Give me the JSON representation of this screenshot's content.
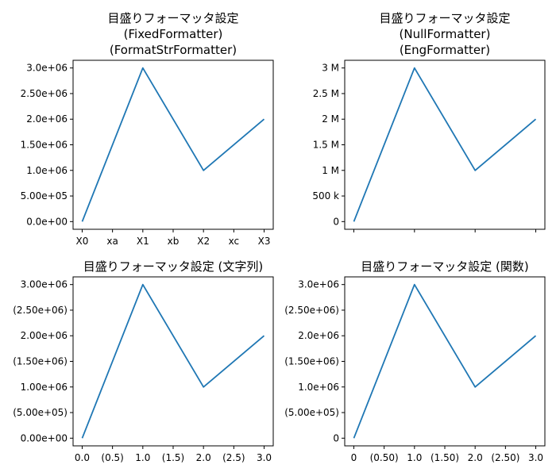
{
  "chart_data": [
    {
      "type": "line",
      "title_lines": [
        "目盛りフォーマッタ設定",
        "(FixedFormatter)",
        "(FormatStrFormatter)"
      ],
      "x": [
        0,
        1,
        2,
        3
      ],
      "y": [
        0,
        3000000,
        1000000,
        2000000
      ],
      "xlim": [
        -0.15,
        3.15
      ],
      "ylim": [
        -150000,
        3150000
      ],
      "x_ticks": [
        {
          "v": 0,
          "label": "X0"
        },
        {
          "v": 0.5,
          "label": "xa"
        },
        {
          "v": 1,
          "label": "X1"
        },
        {
          "v": 1.5,
          "label": "xb"
        },
        {
          "v": 2,
          "label": "X2"
        },
        {
          "v": 2.5,
          "label": "xc"
        },
        {
          "v": 3,
          "label": "X3"
        }
      ],
      "y_ticks": [
        {
          "v": 0,
          "label": "0.0e+00"
        },
        {
          "v": 500000,
          "label": "5.00e+05"
        },
        {
          "v": 1000000,
          "label": "1.0e+06"
        },
        {
          "v": 1500000,
          "label": "1.50e+06"
        },
        {
          "v": 2000000,
          "label": "2.0e+06"
        },
        {
          "v": 2500000,
          "label": "2.50e+06"
        },
        {
          "v": 3000000,
          "label": "3.0e+06"
        }
      ]
    },
    {
      "type": "line",
      "title_lines": [
        "目盛りフォーマッタ設定",
        "(NullFormatter)",
        "(EngFormatter)"
      ],
      "x": [
        0,
        1,
        2,
        3
      ],
      "y": [
        0,
        3000000,
        1000000,
        2000000
      ],
      "xlim": [
        -0.15,
        3.15
      ],
      "ylim": [
        -150000,
        3150000
      ],
      "x_ticks": [
        {
          "v": 0,
          "label": ""
        },
        {
          "v": 1,
          "label": ""
        },
        {
          "v": 2,
          "label": ""
        },
        {
          "v": 3,
          "label": ""
        }
      ],
      "y_ticks": [
        {
          "v": 0,
          "label": "0"
        },
        {
          "v": 500000,
          "label": "500 k"
        },
        {
          "v": 1000000,
          "label": "1 M"
        },
        {
          "v": 1500000,
          "label": "1.5 M"
        },
        {
          "v": 2000000,
          "label": "2 M"
        },
        {
          "v": 2500000,
          "label": "2.5 M"
        },
        {
          "v": 3000000,
          "label": "3 M"
        }
      ]
    },
    {
      "type": "line",
      "title_lines": [
        "目盛りフォーマッタ設定 (文字列)"
      ],
      "x": [
        0,
        1,
        2,
        3
      ],
      "y": [
        0,
        3000000,
        1000000,
        2000000
      ],
      "xlim": [
        -0.15,
        3.15
      ],
      "ylim": [
        -150000,
        3150000
      ],
      "x_ticks": [
        {
          "v": 0,
          "label": "0.0"
        },
        {
          "v": 0.5,
          "label": "(0.5)"
        },
        {
          "v": 1,
          "label": "1.0"
        },
        {
          "v": 1.5,
          "label": "(1.5)"
        },
        {
          "v": 2,
          "label": "2.0"
        },
        {
          "v": 2.5,
          "label": "(2.5)"
        },
        {
          "v": 3,
          "label": "3.0"
        }
      ],
      "y_ticks": [
        {
          "v": 0,
          "label": "0.00e+00"
        },
        {
          "v": 500000,
          "label": "(5.00e+05)"
        },
        {
          "v": 1000000,
          "label": "1.00e+06"
        },
        {
          "v": 1500000,
          "label": "(1.50e+06)"
        },
        {
          "v": 2000000,
          "label": "2.00e+06"
        },
        {
          "v": 2500000,
          "label": "(2.50e+06)"
        },
        {
          "v": 3000000,
          "label": "3.00e+06"
        }
      ]
    },
    {
      "type": "line",
      "title_lines": [
        "目盛りフォーマッタ設定 (関数)"
      ],
      "x": [
        0,
        1,
        2,
        3
      ],
      "y": [
        0,
        3000000,
        1000000,
        2000000
      ],
      "xlim": [
        -0.15,
        3.15
      ],
      "ylim": [
        -150000,
        3150000
      ],
      "x_ticks": [
        {
          "v": 0,
          "label": "0"
        },
        {
          "v": 0.5,
          "label": "(0.50)"
        },
        {
          "v": 1,
          "label": "1.0"
        },
        {
          "v": 1.5,
          "label": "(1.50)"
        },
        {
          "v": 2,
          "label": "2.0"
        },
        {
          "v": 2.5,
          "label": "(2.50)"
        },
        {
          "v": 3,
          "label": "3.0"
        }
      ],
      "y_ticks": [
        {
          "v": 0,
          "label": "0"
        },
        {
          "v": 500000,
          "label": "(5.00e+05)"
        },
        {
          "v": 1000000,
          "label": "1.0e+06"
        },
        {
          "v": 1500000,
          "label": "(1.50e+06)"
        },
        {
          "v": 2000000,
          "label": "2.0e+06"
        },
        {
          "v": 2500000,
          "label": "(2.50e+06)"
        },
        {
          "v": 3000000,
          "label": "3.0e+06"
        }
      ],
      "line_color": "#1f77b4"
    }
  ]
}
